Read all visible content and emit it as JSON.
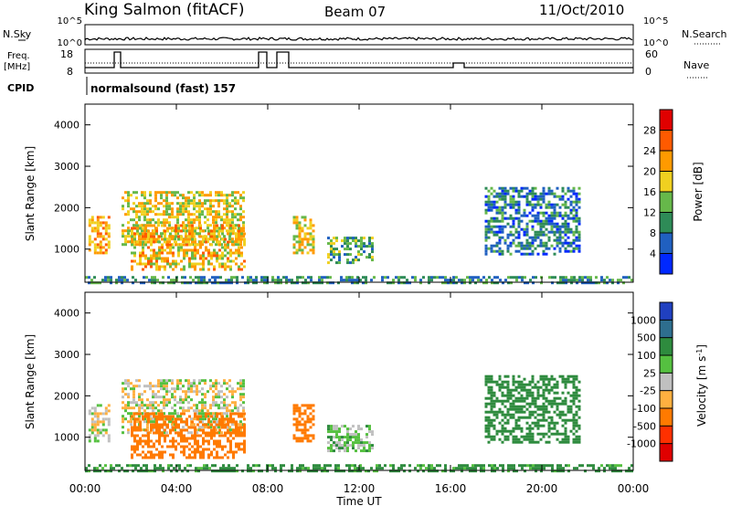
{
  "header": {
    "station": "King Salmon (fitACF)",
    "beam": "Beam 07",
    "date": "11/Oct/2010"
  },
  "strip": {
    "nsky_label": "N.Sky",
    "nsearch_label": "N.Search",
    "noise_ticks": [
      "10^5",
      "10^0"
    ],
    "freq_label_1": "Freq.",
    "freq_label_2": "[MHz]",
    "freq_ticks": [
      "18",
      "8"
    ],
    "nave_label": "Nave",
    "nave_ticks": [
      "60",
      "0"
    ],
    "cpid_label": "CPID",
    "cpid_value": "normalsound (fast) 157"
  },
  "chart_data": [
    {
      "type": "heatmap",
      "id": "power",
      "ylabel": "Slant Range [km]",
      "ylim": [
        200,
        4500
      ],
      "yticks": [
        1000,
        2000,
        3000,
        4000
      ],
      "colorbar": {
        "label": "Power [dB]",
        "ticks": [
          4,
          8,
          12,
          16,
          20,
          24,
          28
        ],
        "range": [
          0,
          32
        ],
        "colors": [
          "#0028ff",
          "#2060c0",
          "#2e8b57",
          "#66b84a",
          "#f0d020",
          "#ff9a00",
          "#ff5a00",
          "#e00000"
        ]
      },
      "regions": [
        {
          "t": [
            0.15,
            1.1
          ],
          "r": [
            900,
            1800
          ],
          "value": 22
        },
        {
          "t": [
            1.6,
            7.0
          ],
          "r": [
            1100,
            2400
          ],
          "value": 18
        },
        {
          "t": [
            2.0,
            7.0
          ],
          "r": [
            500,
            1600
          ],
          "value": 20
        },
        {
          "t": [
            9.1,
            10.0
          ],
          "r": [
            900,
            1800
          ],
          "value": 18
        },
        {
          "t": [
            10.6,
            12.6
          ],
          "r": [
            700,
            1300
          ],
          "value": 12
        },
        {
          "t": [
            17.5,
            21.7
          ],
          "r": [
            900,
            2500
          ],
          "value": 8
        },
        {
          "t": [
            0.0,
            24.0
          ],
          "r": [
            200,
            350
          ],
          "value": 10
        }
      ]
    },
    {
      "type": "heatmap",
      "id": "velocity",
      "xlabel": "Time UT",
      "ylabel": "Slant Range [km]",
      "ylim": [
        200,
        4500
      ],
      "yticks": [
        1000,
        2000,
        3000,
        4000
      ],
      "xticks": [
        "00:00",
        "04:00",
        "08:00",
        "12:00",
        "16:00",
        "20:00",
        "00:00"
      ],
      "xlim": [
        0,
        24
      ],
      "colorbar": {
        "label": "Velocity [m s",
        "label_sup": "-1",
        "label_end": "]",
        "ticks": [
          "1000",
          "500",
          "100",
          "25",
          "-25",
          "-100",
          "-500",
          "-1000"
        ],
        "colors": [
          "#2040c0",
          "#2e6e8e",
          "#2e8b3e",
          "#55c040",
          "#c0c0c0",
          "#ffb040",
          "#ff7a00",
          "#ff3000",
          "#e00000"
        ]
      },
      "regions": [
        {
          "t": [
            0.15,
            1.1
          ],
          "r": [
            900,
            1800
          ],
          "value": 0
        },
        {
          "t": [
            1.6,
            7.0
          ],
          "r": [
            1100,
            2400
          ],
          "value": 0
        },
        {
          "t": [
            2.0,
            7.0
          ],
          "r": [
            500,
            1600
          ],
          "value": -200
        },
        {
          "t": [
            9.1,
            10.0
          ],
          "r": [
            900,
            1800
          ],
          "value": -300
        },
        {
          "t": [
            10.6,
            12.6
          ],
          "r": [
            700,
            1300
          ],
          "value": 50
        },
        {
          "t": [
            17.5,
            21.7
          ],
          "r": [
            900,
            2500
          ],
          "value": 200
        },
        {
          "t": [
            0.0,
            24.0
          ],
          "r": [
            200,
            350
          ],
          "value": 150
        }
      ]
    }
  ]
}
